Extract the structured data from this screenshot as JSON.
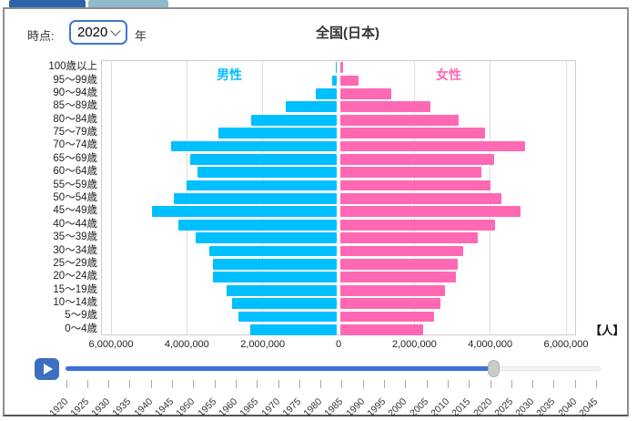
{
  "header": {
    "time_label": "時点:",
    "year_value": "2020",
    "year_suffix": "年",
    "select_border_color": "#4276c9"
  },
  "tabs": {
    "active_color": "#2a65a7",
    "inactive_color": "#8fbac9"
  },
  "chart_data": {
    "type": "bar",
    "orientation": "horizontal-population-pyramid",
    "title": "全国(日本)",
    "unit_label": "【人】",
    "male_label": "男性",
    "female_label": "女性",
    "male_color": "#00bfff",
    "female_color": "#ff69b4",
    "xmax": 6000000,
    "x_tick_values": [
      -6000000,
      -4000000,
      -2000000,
      0,
      2000000,
      4000000,
      6000000
    ],
    "x_tick_labels": [
      "6,000,000",
      "4,000,000",
      "2,000,000",
      "0",
      "2,000,000",
      "4,000,000",
      "6,000,000"
    ],
    "age_groups": [
      "100歳以上",
      "95〜99歳",
      "90〜94歳",
      "85〜89歳",
      "80〜84歳",
      "75〜79歳",
      "70〜74歳",
      "65〜69歳",
      "60〜64歳",
      "55〜59歳",
      "50〜54歳",
      "45〜49歳",
      "40〜44歳",
      "35〜39歳",
      "30〜34歳",
      "25〜29歳",
      "20〜24歳",
      "15〜19歳",
      "10〜14歳",
      "5〜9歳",
      "0〜4歳"
    ],
    "series": [
      {
        "name": "男性",
        "side": "left",
        "values": [
          10000,
          118000,
          551000,
          1355000,
          2268000,
          3126000,
          4369000,
          3854000,
          3661000,
          3957000,
          4288000,
          4866000,
          4175000,
          3717000,
          3370000,
          3274000,
          3270000,
          2898000,
          2756000,
          2586000,
          2288000
        ]
      },
      {
        "name": "女性",
        "side": "right",
        "values": [
          71000,
          478000,
          1349000,
          2370000,
          3119000,
          3806000,
          4878000,
          4064000,
          3713000,
          3953000,
          4247000,
          4760000,
          4085000,
          3620000,
          3242000,
          3084000,
          3050000,
          2755000,
          2629000,
          2461000,
          2179000
        ]
      }
    ],
    "grid": true,
    "legend_position": "inside-top"
  },
  "slider": {
    "min_year": 1920,
    "max_year": 2045,
    "step": 5,
    "current_year": 2020,
    "fill_color": "#3a70d8",
    "years": [
      "1920",
      "1925",
      "1930",
      "1935",
      "1940",
      "1945",
      "1950",
      "1955",
      "1960",
      "1965",
      "1970",
      "1975",
      "1980",
      "1985",
      "1990",
      "1995",
      "2000",
      "2005",
      "2010",
      "2015",
      "2020",
      "2025",
      "2030",
      "2035",
      "2040",
      "2045"
    ]
  },
  "player": {
    "button_color": "#3d6fc1",
    "icon": "play"
  }
}
